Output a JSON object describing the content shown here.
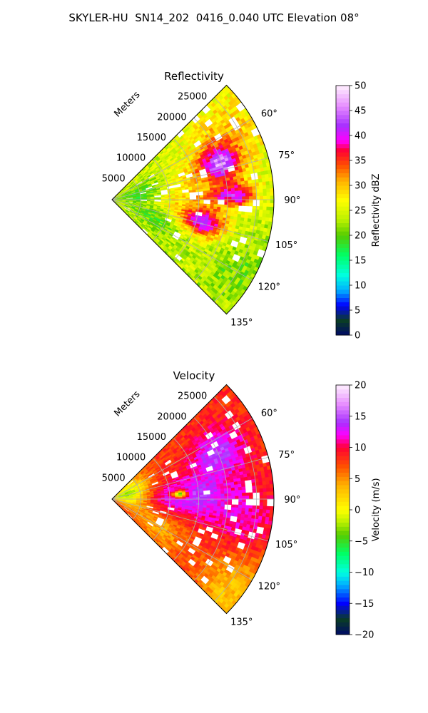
{
  "suptitle": "SKYLER-HU  SN14_202  0416_0.040 UTC Elevation 08°",
  "chart_data": [
    {
      "type": "heatmap",
      "projection": "polar-sector",
      "title": "Reflectivity",
      "range_axis_label": "Meters",
      "range_ticks": [
        5000,
        10000,
        15000,
        20000,
        25000
      ],
      "range_tick_labels": [
        "5000",
        "10000",
        "15000",
        "20000",
        "25000"
      ],
      "range_max": 28000,
      "azimuth_range_deg": [
        45,
        135
      ],
      "azimuth_ticks": [
        60,
        75,
        90,
        105,
        120,
        135
      ],
      "azimuth_tick_labels": [
        "60°",
        "75°",
        "90°",
        "105°",
        "120°",
        "135°"
      ],
      "grid": true,
      "colorbar": {
        "label": "Reflectivity dBZ",
        "min": 0,
        "max": 50,
        "ticks": [
          0,
          5,
          10,
          15,
          20,
          25,
          30,
          35,
          40,
          45,
          50
        ],
        "tick_labels": [
          "0",
          "5",
          "10",
          "15",
          "20",
          "25",
          "30",
          "35",
          "40",
          "45",
          "50"
        ],
        "stops": [
          {
            "v": 0,
            "c": "#000a66"
          },
          {
            "v": 3,
            "c": "#0a3d24"
          },
          {
            "v": 6,
            "c": "#0000ff"
          },
          {
            "v": 9,
            "c": "#00b0ff"
          },
          {
            "v": 12,
            "c": "#00ffe0"
          },
          {
            "v": 16,
            "c": "#00ff66"
          },
          {
            "v": 20,
            "c": "#55cc00"
          },
          {
            "v": 23,
            "c": "#b8f000"
          },
          {
            "v": 27,
            "c": "#ffff00"
          },
          {
            "v": 31,
            "c": "#ffb000"
          },
          {
            "v": 34,
            "c": "#ff5000"
          },
          {
            "v": 37,
            "c": "#ff0033"
          },
          {
            "v": 39,
            "c": "#ff00ff"
          },
          {
            "v": 42,
            "c": "#a830ff"
          },
          {
            "v": 46,
            "c": "#e890ff"
          },
          {
            "v": 50,
            "c": "#fff0ff"
          }
        ]
      },
      "field": {
        "background": 24,
        "noise": 3,
        "blobs": [
          {
            "r": 0.7,
            "az": 72,
            "val": 42,
            "sr": 0.09,
            "sa": 6
          },
          {
            "r": 0.58,
            "az": 104,
            "val": 41,
            "sr": 0.1,
            "sa": 6
          },
          {
            "r": 0.75,
            "az": 88,
            "val": 40,
            "sr": 0.1,
            "sa": 4
          },
          {
            "r": 0.4,
            "az": 88,
            "val": 30,
            "sr": 0.15,
            "sa": 14
          },
          {
            "r": 0.2,
            "az": 80,
            "val": 17,
            "sr": 0.12,
            "sa": 12
          },
          {
            "r": 0.3,
            "az": 112,
            "val": 19,
            "sr": 0.15,
            "sa": 10
          },
          {
            "r": 0.88,
            "az": 120,
            "val": 21,
            "sr": 0.12,
            "sa": 10
          },
          {
            "r": 0.8,
            "az": 60,
            "val": 30,
            "sr": 0.2,
            "sa": 12
          }
        ]
      }
    },
    {
      "type": "heatmap",
      "projection": "polar-sector",
      "title": "Velocity",
      "range_axis_label": "Meters",
      "range_ticks": [
        5000,
        10000,
        15000,
        20000,
        25000
      ],
      "range_tick_labels": [
        "5000",
        "10000",
        "15000",
        "20000",
        "25000"
      ],
      "range_max": 28000,
      "azimuth_range_deg": [
        45,
        135
      ],
      "azimuth_ticks": [
        60,
        75,
        90,
        105,
        120,
        135
      ],
      "azimuth_tick_labels": [
        "60°",
        "75°",
        "90°",
        "105°",
        "120°",
        "135°"
      ],
      "grid": true,
      "colorbar": {
        "label": "Velocity (m/s)",
        "min": -20,
        "max": 20,
        "ticks": [
          -20,
          -15,
          -10,
          -5,
          0,
          5,
          10,
          15,
          20
        ],
        "tick_labels": [
          "−20",
          "−15",
          "−10",
          "−5",
          "0",
          "5",
          "10",
          "15",
          "20"
        ],
        "stops": [
          {
            "v": -20,
            "c": "#000a66"
          },
          {
            "v": -17.5,
            "c": "#0a3d24"
          },
          {
            "v": -15,
            "c": "#0000ff"
          },
          {
            "v": -12,
            "c": "#00b0ff"
          },
          {
            "v": -10,
            "c": "#00ffe0"
          },
          {
            "v": -7,
            "c": "#00ff66"
          },
          {
            "v": -4,
            "c": "#55cc00"
          },
          {
            "v": -2,
            "c": "#b8f000"
          },
          {
            "v": 0,
            "c": "#ffff00"
          },
          {
            "v": 4,
            "c": "#ffb000"
          },
          {
            "v": 7,
            "c": "#ff5000"
          },
          {
            "v": 10,
            "c": "#ff0033"
          },
          {
            "v": 12,
            "c": "#ff00ff"
          },
          {
            "v": 14,
            "c": "#a830ff"
          },
          {
            "v": 17,
            "c": "#e890ff"
          },
          {
            "v": 20,
            "c": "#fff0ff"
          }
        ]
      },
      "field": {
        "background": 8,
        "noise": 1.5,
        "blobs": [
          {
            "r": 0.48,
            "az": 88,
            "val": 14,
            "sr": 0.2,
            "sa": 11
          },
          {
            "r": 0.72,
            "az": 66,
            "val": 14,
            "sr": 0.12,
            "sa": 8
          },
          {
            "r": 0.1,
            "az": 75,
            "val": -3,
            "sr": 0.1,
            "sa": 25
          },
          {
            "r": 0.92,
            "az": 128,
            "val": 3,
            "sr": 0.15,
            "sa": 12
          },
          {
            "r": 0.35,
            "az": 122,
            "val": 4,
            "sr": 0.12,
            "sa": 10
          },
          {
            "r": 0.85,
            "az": 100,
            "val": 11,
            "sr": 0.15,
            "sa": 10
          },
          {
            "r": 0.42,
            "az": 86,
            "val": -10,
            "sr": 0.03,
            "sa": 2
          }
        ]
      }
    }
  ]
}
